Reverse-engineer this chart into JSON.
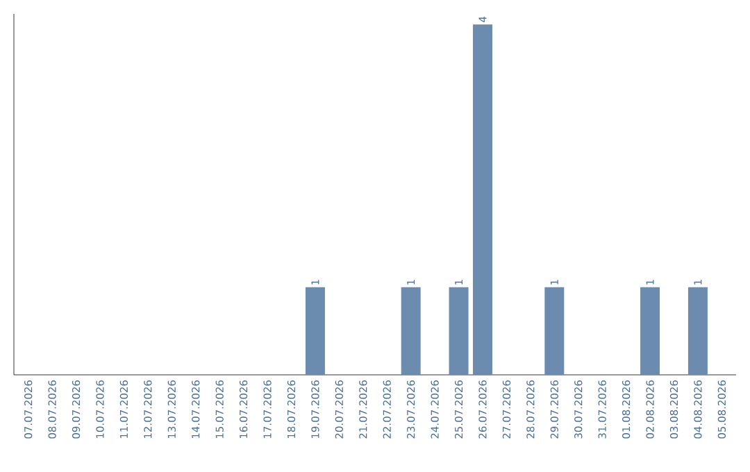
{
  "chart_data": {
    "type": "bar",
    "categories": [
      "07.07.2026",
      "08.07.2026",
      "09.07.2026",
      "10.07.2026",
      "11.07.2026",
      "12.07.2026",
      "13.07.2026",
      "14.07.2026",
      "15.07.2026",
      "16.07.2026",
      "17.07.2026",
      "18.07.2026",
      "19.07.2026",
      "20.07.2026",
      "21.07.2026",
      "22.07.2026",
      "23.07.2026",
      "24.07.2026",
      "25.07.2026",
      "26.07.2026",
      "27.07.2026",
      "28.07.2026",
      "29.07.2026",
      "30.07.2026",
      "31.07.2026",
      "01.08.2026",
      "02.08.2026",
      "03.08.2026",
      "04.08.2026",
      "05.08.2026"
    ],
    "values": [
      null,
      null,
      null,
      null,
      null,
      null,
      null,
      null,
      null,
      null,
      null,
      null,
      1,
      null,
      null,
      null,
      1,
      null,
      1,
      4,
      null,
      null,
      1,
      null,
      null,
      null,
      1,
      null,
      1,
      null
    ],
    "value_labels": [
      null,
      null,
      null,
      null,
      null,
      null,
      null,
      null,
      null,
      null,
      null,
      null,
      "1",
      null,
      null,
      null,
      "1",
      null,
      "1",
      "4",
      null,
      null,
      "1",
      null,
      null,
      null,
      "1",
      null,
      "1",
      null
    ],
    "color": "#6b8cae"
  }
}
